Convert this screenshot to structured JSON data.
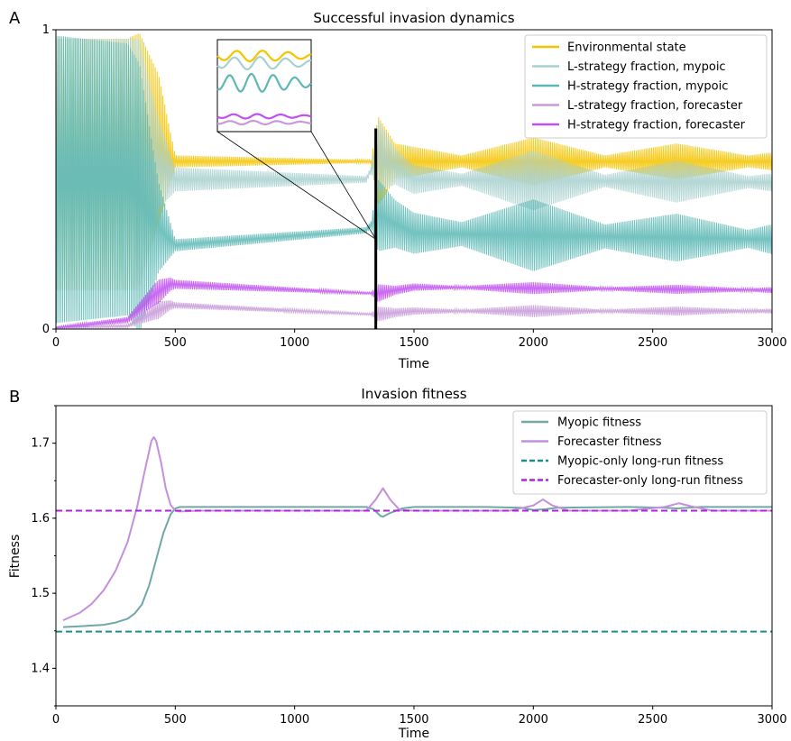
{
  "chart_data": [
    {
      "panel": "A",
      "type": "line",
      "title": "Successful invasion dynamics",
      "xlabel": "Time",
      "ylabel": "",
      "xlim": [
        0,
        3000
      ],
      "ylim": [
        0,
        1
      ],
      "xticks": [
        0,
        500,
        1000,
        1500,
        2000,
        2500,
        3000
      ],
      "yticks": [
        0,
        1
      ],
      "legend_position": "top-right",
      "series": [
        {
          "name": "Environmental state",
          "color": "#f5c400",
          "center": [
            [
              0,
              0.55
            ],
            [
              300,
              0.55
            ],
            [
              430,
              0.6
            ],
            [
              500,
              0.56
            ],
            [
              1340,
              0.56
            ],
            [
              1360,
              0.56
            ],
            [
              1500,
              0.56
            ],
            [
              3000,
              0.56
            ]
          ],
          "amp": [
            [
              0,
              0.42
            ],
            [
              350,
              0.42
            ],
            [
              430,
              0.25
            ],
            [
              500,
              0.02
            ],
            [
              1320,
              0.005
            ],
            [
              1350,
              0.15
            ],
            [
              1420,
              0.06
            ],
            [
              1700,
              0.02
            ],
            [
              2000,
              0.08
            ],
            [
              2300,
              0.02
            ],
            [
              2600,
              0.06
            ],
            [
              2900,
              0.02
            ],
            [
              3000,
              0.03
            ]
          ]
        },
        {
          "name": "L-strategy fraction, mypoic",
          "color": "#a8d0cf",
          "center": [
            [
              0,
              0.55
            ],
            [
              300,
              0.55
            ],
            [
              430,
              0.55
            ],
            [
              500,
              0.5
            ],
            [
              1300,
              0.5
            ],
            [
              1350,
              0.58
            ],
            [
              1500,
              0.5
            ],
            [
              3000,
              0.49
            ]
          ],
          "amp": [
            [
              0,
              0.42
            ],
            [
              350,
              0.42
            ],
            [
              430,
              0.15
            ],
            [
              500,
              0.04
            ],
            [
              1320,
              0.01
            ],
            [
              1350,
              0.12
            ],
            [
              1420,
              0.06
            ],
            [
              1700,
              0.02
            ],
            [
              2000,
              0.1
            ],
            [
              2300,
              0.02
            ],
            [
              2600,
              0.07
            ],
            [
              2900,
              0.02
            ],
            [
              3000,
              0.03
            ]
          ]
        },
        {
          "name": "H-strategy fraction, mypoic",
          "color": "#5db8b5",
          "center": [
            [
              0,
              0.5
            ],
            [
              300,
              0.5
            ],
            [
              420,
              0.35
            ],
            [
              500,
              0.28
            ],
            [
              1300,
              0.33
            ],
            [
              1350,
              0.38
            ],
            [
              1500,
              0.32
            ],
            [
              3000,
              0.3
            ]
          ],
          "amp": [
            [
              0,
              0.48
            ],
            [
              350,
              0.45
            ],
            [
              430,
              0.15
            ],
            [
              500,
              0.02
            ],
            [
              1320,
              0.01
            ],
            [
              1350,
              0.12
            ],
            [
              1420,
              0.08
            ],
            [
              1700,
              0.04
            ],
            [
              2000,
              0.12
            ],
            [
              2300,
              0.04
            ],
            [
              2600,
              0.08
            ],
            [
              2900,
              0.03
            ],
            [
              3000,
              0.05
            ]
          ]
        },
        {
          "name": "L-strategy fraction, forecaster",
          "color": "#c79ad8",
          "center": [
            [
              0,
              0.005
            ],
            [
              300,
              0.01
            ],
            [
              420,
              0.06
            ],
            [
              480,
              0.08
            ],
            [
              1300,
              0.05
            ],
            [
              1350,
              0.05
            ],
            [
              1500,
              0.06
            ],
            [
              3000,
              0.06
            ]
          ],
          "amp": [
            [
              0,
              0.002
            ],
            [
              300,
              0.005
            ],
            [
              430,
              0.03
            ],
            [
              500,
              0.01
            ],
            [
              1320,
              0.003
            ],
            [
              1350,
              0.025
            ],
            [
              1420,
              0.015
            ],
            [
              1700,
              0.005
            ],
            [
              2000,
              0.02
            ],
            [
              2300,
              0.005
            ],
            [
              2600,
              0.015
            ],
            [
              2900,
              0.005
            ],
            [
              3000,
              0.008
            ]
          ]
        },
        {
          "name": "H-strategy fraction, forecaster",
          "color": "#c050f0",
          "center": [
            [
              0,
              0.005
            ],
            [
              300,
              0.03
            ],
            [
              420,
              0.12
            ],
            [
              480,
              0.15
            ],
            [
              1300,
              0.12
            ],
            [
              1350,
              0.12
            ],
            [
              1500,
              0.14
            ],
            [
              3000,
              0.13
            ]
          ],
          "amp": [
            [
              0,
              0.003
            ],
            [
              300,
              0.01
            ],
            [
              430,
              0.04
            ],
            [
              500,
              0.015
            ],
            [
              1320,
              0.003
            ],
            [
              1350,
              0.03
            ],
            [
              1420,
              0.015
            ],
            [
              1700,
              0.005
            ],
            [
              2000,
              0.02
            ],
            [
              2300,
              0.005
            ],
            [
              2600,
              0.015
            ],
            [
              2900,
              0.005
            ],
            [
              3000,
              0.01
            ]
          ]
        }
      ],
      "zoom_marker_x": 1340
    },
    {
      "panel": "B",
      "type": "line",
      "title": "Invasion fitness",
      "xlabel": "Time",
      "ylabel": "Fitness",
      "xlim": [
        0,
        3000
      ],
      "ylim": [
        1.35,
        1.75
      ],
      "xticks": [
        0,
        500,
        1000,
        1500,
        2000,
        2500,
        3000
      ],
      "yticks": [
        1.4,
        1.5,
        1.6,
        1.7
      ],
      "legend_position": "top-right",
      "series": [
        {
          "name": "Myopic fitness",
          "color": "#6fa8a6",
          "style": "solid",
          "x": [
            30,
            100,
            200,
            250,
            300,
            330,
            360,
            390,
            420,
            450,
            480,
            500,
            520,
            600,
            1000,
            1300,
            1330,
            1360,
            1370,
            1400,
            1450,
            1500,
            1800,
            1950,
            2000,
            2050,
            2100,
            2400,
            2550,
            2600,
            2650,
            2700,
            3000
          ],
          "y": [
            1.455,
            1.456,
            1.458,
            1.461,
            1.466,
            1.473,
            1.485,
            1.51,
            1.545,
            1.58,
            1.605,
            1.613,
            1.615,
            1.615,
            1.615,
            1.615,
            1.612,
            1.603,
            1.602,
            1.607,
            1.613,
            1.615,
            1.615,
            1.614,
            1.611,
            1.612,
            1.614,
            1.615,
            1.614,
            1.613,
            1.614,
            1.615,
            1.615
          ]
        },
        {
          "name": "Forecaster fitness",
          "color": "#c490dc",
          "style": "solid",
          "x": [
            30,
            100,
            150,
            200,
            250,
            300,
            340,
            370,
            400,
            410,
            420,
            440,
            460,
            480,
            500,
            520,
            600,
            1000,
            1300,
            1340,
            1370,
            1400,
            1440,
            1500,
            1900,
            2000,
            2040,
            2080,
            2150,
            2400,
            2550,
            2610,
            2660,
            2750,
            3000
          ],
          "y": [
            1.464,
            1.474,
            1.486,
            1.504,
            1.53,
            1.568,
            1.615,
            1.66,
            1.703,
            1.708,
            1.703,
            1.675,
            1.64,
            1.618,
            1.61,
            1.609,
            1.61,
            1.61,
            1.61,
            1.625,
            1.64,
            1.625,
            1.611,
            1.61,
            1.61,
            1.617,
            1.625,
            1.617,
            1.61,
            1.61,
            1.615,
            1.62,
            1.616,
            1.61,
            1.61
          ]
        },
        {
          "name": "Myopic-only long-run fitness",
          "color": "#1a8f8a",
          "style": "dashed",
          "x": [
            0,
            3000
          ],
          "y": [
            1.449,
            1.449
          ]
        },
        {
          "name": "Forecaster-only long-run fitness",
          "color": "#b020e0",
          "style": "dashed",
          "x": [
            0,
            3000
          ],
          "y": [
            1.61,
            1.61
          ]
        }
      ]
    }
  ],
  "panel_labels": [
    "A",
    "B"
  ]
}
